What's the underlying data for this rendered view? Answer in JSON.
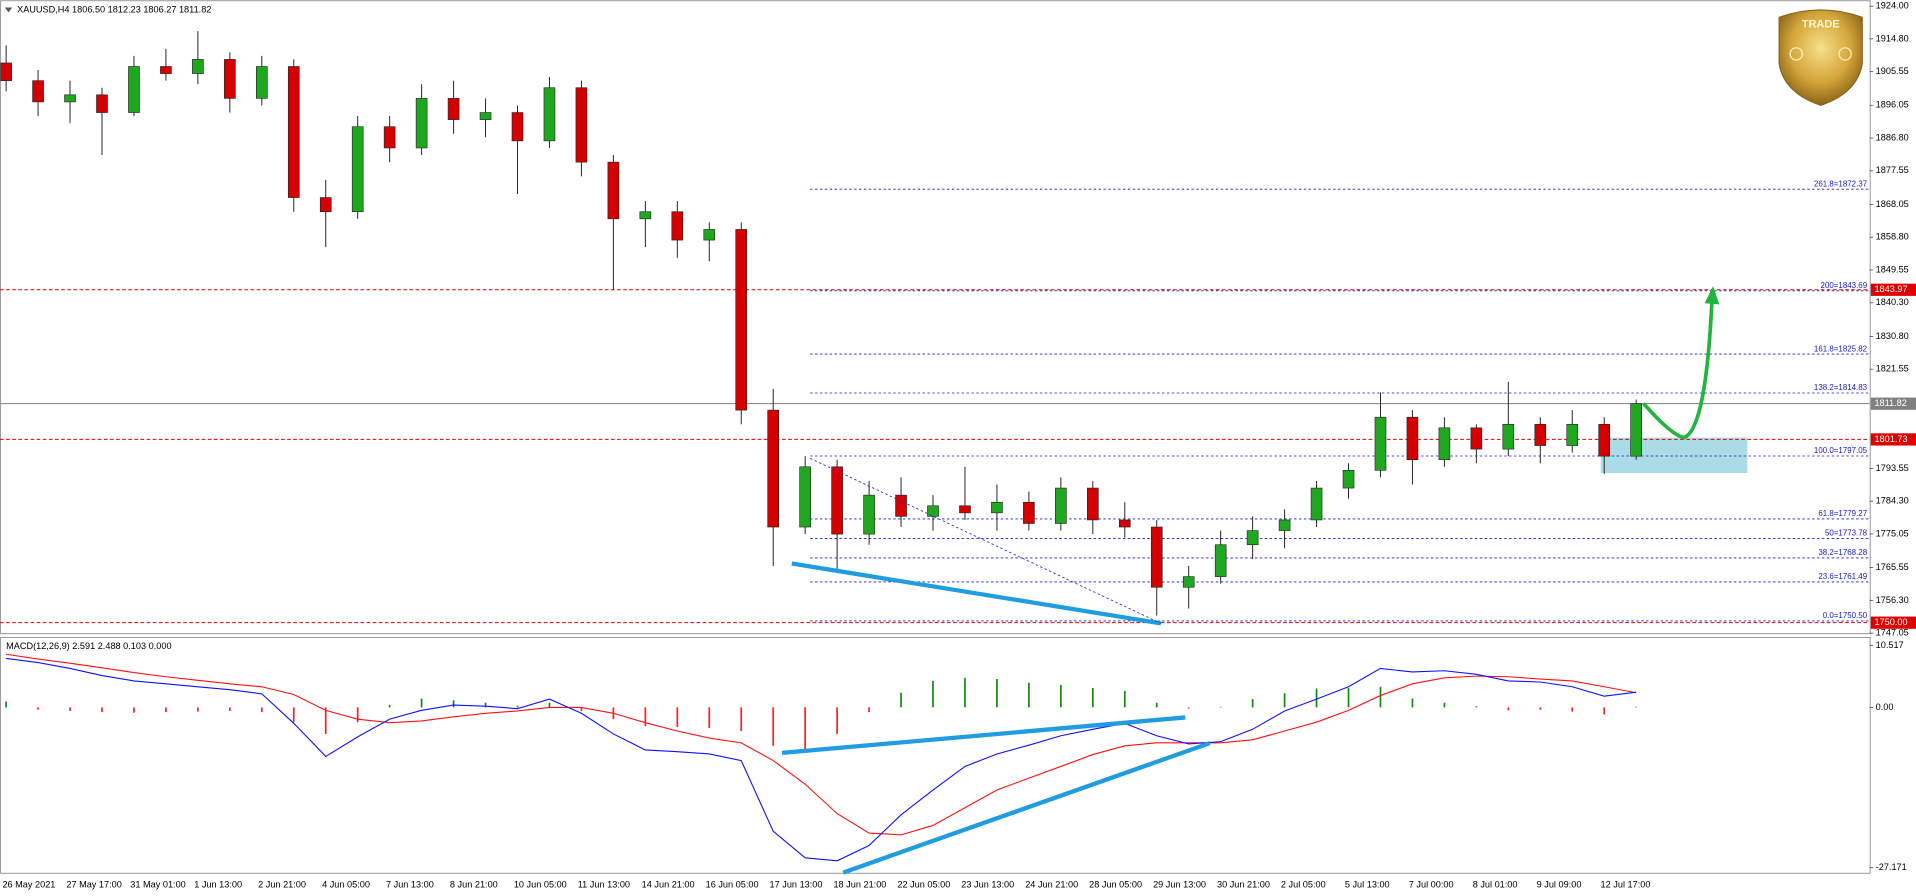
{
  "chart_data": [
    {
      "type": "candlestick",
      "title": "XAUUSD,H4  1806.50 1812.23 1806.27 1811.82",
      "categories": [
        "26 May 2021",
        null,
        "27 May 17:00",
        null,
        "31 May 01:00",
        null,
        "1 Jun 13:00",
        null,
        "2 Jun 21:00",
        null,
        "4 Jun 05:00",
        null,
        "7 Jun 13:00",
        null,
        "8 Jun 21:00",
        null,
        "10 Jun 05:00",
        null,
        "11 Jun 13:00",
        null,
        "14 Jun 21:00",
        null,
        "16 Jun 05:00",
        null,
        "17 Jun 13:00",
        null,
        "18 Jun 21:00",
        null,
        "22 Jun 05:00",
        null,
        "23 Jun 13:00",
        null,
        "24 Jun 21:00",
        null,
        "28 Jun 05:00",
        null,
        "29 Jun 13:00",
        null,
        "30 Jun 21:00",
        null,
        "2 Jul 05:00",
        null,
        "5 Jul 13:00",
        null,
        "7 Jul 00:00",
        null,
        "8 Jul 01:00",
        null,
        "9 Jul 09:00",
        null,
        "12 Jul 17:00",
        null
      ],
      "open": [
        1908,
        1903,
        1897,
        1899,
        1894,
        1907,
        1905,
        1909,
        1898,
        1907,
        1870,
        1866,
        1890,
        1884,
        1898,
        1892,
        1894,
        1886,
        1901,
        1880,
        1864,
        1866,
        1858,
        1861,
        1810,
        1777,
        1794,
        1775,
        1786,
        1780,
        1783,
        1781,
        1784,
        1778,
        1788,
        1779,
        1777,
        1760,
        1763,
        1772,
        1776,
        1779,
        1788,
        1793,
        1808,
        1796,
        1805,
        1799,
        1806,
        1800,
        1806,
        1797
      ],
      "high": [
        1913,
        1906,
        1903,
        1901,
        1910,
        1912,
        1917,
        1911,
        1910,
        1909,
        1875,
        1893,
        1893,
        1902,
        1903,
        1898,
        1896,
        1904,
        1903,
        1882,
        1869,
        1869,
        1863,
        1863,
        1816,
        1797,
        1796,
        1790,
        1791,
        1786,
        1794,
        1789,
        1787,
        1791,
        1790,
        1784,
        1779,
        1766,
        1776,
        1780,
        1782,
        1790,
        1795,
        1815,
        1810,
        1808,
        1806,
        1818,
        1808,
        1810,
        1808,
        1813
      ],
      "low": [
        1900,
        1893,
        1891,
        1882,
        1893,
        1903,
        1902,
        1894,
        1896,
        1866,
        1856,
        1864,
        1880,
        1882,
        1888,
        1887,
        1871,
        1884,
        1876,
        1844,
        1856,
        1853,
        1852,
        1806,
        1766,
        1775,
        1764,
        1772,
        1777,
        1776,
        1779,
        1776,
        1776,
        1776,
        1775,
        1774,
        1752,
        1754,
        1761,
        1768,
        1771,
        1777,
        1785,
        1791,
        1789,
        1794,
        1795,
        1797,
        1795,
        1798,
        1792,
        1796
      ],
      "close": [
        1903,
        1897,
        1899,
        1894,
        1907,
        1905,
        1909,
        1898,
        1907,
        1870,
        1866,
        1890,
        1884,
        1898,
        1892,
        1894,
        1886,
        1901,
        1880,
        1864,
        1866,
        1858,
        1861,
        1810,
        1777,
        1794,
        1775,
        1786,
        1780,
        1783,
        1781,
        1784,
        1778,
        1788,
        1779,
        1777,
        1760,
        1763,
        1772,
        1776,
        1779,
        1788,
        1793,
        1808,
        1796,
        1805,
        1799,
        1806,
        1800,
        1806,
        1797,
        1811.82
      ],
      "up_color": "#1fa81f",
      "down_color": "#d40000",
      "wick_color": "#222222",
      "ylim": [
        1747.05,
        1924.0
      ],
      "yticks": [
        {
          "value": 1924.0,
          "label": "1924.00"
        },
        {
          "value": 1914.8,
          "label": "1914.80"
        },
        1905.55,
        1896.05,
        {
          "value": 1886.8,
          "label": "1886.80"
        },
        1877.55,
        1868.05,
        {
          "value": 1858.8,
          "label": "1858.80"
        },
        1849.55,
        {
          "value": 1840.3,
          "label": "1840.30"
        },
        {
          "value": 1830.8,
          "label": "1830.80"
        },
        1821.55,
        1793.55,
        {
          "value": 1784.3,
          "label": "1784.30"
        },
        1775.05,
        1765.55,
        {
          "value": 1756.3,
          "label": "1756.30"
        },
        1747.05
      ],
      "levels": [
        {
          "value": 1843.97,
          "label": "1843.97",
          "color": "#e00000"
        },
        {
          "value": 1811.82,
          "label": "1811.82",
          "color": "#808080"
        },
        {
          "value": 1801.73,
          "label": "1801.73",
          "color": "#e00000"
        },
        {
          "value": 1750.0,
          "label": "1750.00",
          "color": "#e00000"
        }
      ],
      "fib_color": "#1a1ad0",
      "fib_levels": [
        {
          "value": 1872.37,
          "label": "261.8=1872.37"
        },
        {
          "value": 1843.69,
          "label": "200=1843.69"
        },
        {
          "value": 1825.82,
          "label": "161.8=1825.82"
        },
        {
          "value": 1814.83,
          "label": "138.2=1814.83"
        },
        {
          "value": 1797.05,
          "label": "100.0=1797.05"
        },
        {
          "value": 1779.27,
          "label": "61.8=1779.27"
        },
        {
          "value": 1773.78,
          "label": "50=1773.78"
        },
        {
          "value": 1768.28,
          "label": "38.2=1768.28"
        },
        {
          "value": 1761.49,
          "label": "23.6=1761.49"
        },
        {
          "value": 1750.5,
          "label": "0.0=1750.50"
        }
      ]
    },
    {
      "type": "macd",
      "title": "MACD(12,26,9) 2.591 2.488 0.103 0.000",
      "macd": [
        8.3,
        7.6,
        6.6,
        5.4,
        4.5,
        4.0,
        3.5,
        3.0,
        2.3,
        -2.7,
        -8.3,
        -5.0,
        -2.0,
        -0.5,
        0.4,
        0.2,
        -0.2,
        1.4,
        -1.0,
        -4.5,
        -7.2,
        -7.5,
        -7.9,
        -9.0,
        -21.0,
        -25.5,
        -26.0,
        -23.4,
        -18.2,
        -14.0,
        -10.0,
        -7.9,
        -6.4,
        -4.8,
        -3.7,
        -2.7,
        -4.8,
        -6.2,
        -5.8,
        -3.7,
        -0.6,
        1.4,
        3.5,
        6.6,
        6.0,
        6.2,
        5.6,
        4.5,
        4.3,
        3.5,
        1.9,
        2.591
      ],
      "signal": [
        9.0,
        8.2,
        7.5,
        6.7,
        5.9,
        5.2,
        4.6,
        4.0,
        3.5,
        2.2,
        -0.5,
        -2.0,
        -2.6,
        -2.3,
        -1.6,
        -1.0,
        -0.6,
        0.0,
        0.0,
        -1.0,
        -2.6,
        -4.0,
        -5.2,
        -6.0,
        -9.0,
        -13.0,
        -18.0,
        -21.3,
        -21.6,
        -20.0,
        -17.0,
        -14.0,
        -12.0,
        -10.0,
        -8.0,
        -6.5,
        -6.0,
        -6.0,
        -6.0,
        -5.5,
        -4.0,
        -2.5,
        -0.5,
        2.0,
        4.0,
        5.0,
        5.3,
        5.2,
        4.8,
        4.5,
        3.5,
        2.488
      ],
      "histogram": [
        1.0,
        -0.4,
        -0.6,
        -0.8,
        -0.9,
        -0.8,
        -0.7,
        -0.6,
        -0.8,
        -2.5,
        -4.5,
        -2.5,
        0.4,
        1.5,
        1.2,
        0.8,
        0.3,
        0.8,
        -0.6,
        -2.0,
        -3.2,
        -3.3,
        -3.5,
        -4.0,
        -6.5,
        -7.2,
        -4.5,
        -0.8,
        2.5,
        4.5,
        5.0,
        4.8,
        4.2,
        3.8,
        3.3,
        2.8,
        0.8,
        -0.2,
        0.1,
        1.4,
        2.4,
        3.2,
        3.3,
        3.5,
        1.5,
        0.8,
        0.2,
        -0.5,
        -0.4,
        -0.7,
        -1.2,
        0.103
      ],
      "macd_color": "#1010ff",
      "signal_color": "#ff1010",
      "hist_up_color": "#138a13",
      "hist_down_color": "#ff2020",
      "ylim": [
        -27.171,
        10.517
      ],
      "yticks": [
        10.517,
        {
          "value": 0,
          "label": "0.00"
        },
        -27.171
      ]
    }
  ],
  "logo": {
    "text": "TRADE"
  }
}
